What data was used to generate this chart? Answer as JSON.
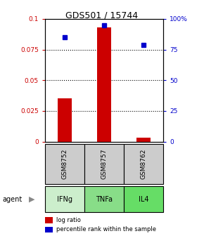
{
  "title": "GDS501 / 15744",
  "categories": [
    "GSM8752",
    "GSM8757",
    "GSM8762"
  ],
  "agents": [
    "IFNg",
    "TNFa",
    "IL4"
  ],
  "log_ratios": [
    0.035,
    0.093,
    0.003
  ],
  "percentile_ranks": [
    85,
    95,
    79
  ],
  "bar_color": "#cc0000",
  "dot_color": "#0000cc",
  "ylim_left": [
    0,
    0.1
  ],
  "ylim_right": [
    0,
    100
  ],
  "yticks_left": [
    0,
    0.025,
    0.05,
    0.075,
    0.1
  ],
  "yticks_right": [
    0,
    25,
    50,
    75,
    100
  ],
  "ytick_labels_left": [
    "0",
    "0.025",
    "0.05",
    "0.075",
    "0.1"
  ],
  "ytick_labels_right": [
    "0",
    "25",
    "50",
    "75",
    "100%"
  ],
  "cell_color_gsm": "#cccccc",
  "cell_color_agent_light": "#bbeeaa",
  "cell_color_agent_mid": "#88dd88",
  "legend_log": "log ratio",
  "legend_pct": "percentile rank within the sample",
  "agent_label": "agent",
  "bar_width": 0.35,
  "background_color": "#ffffff"
}
